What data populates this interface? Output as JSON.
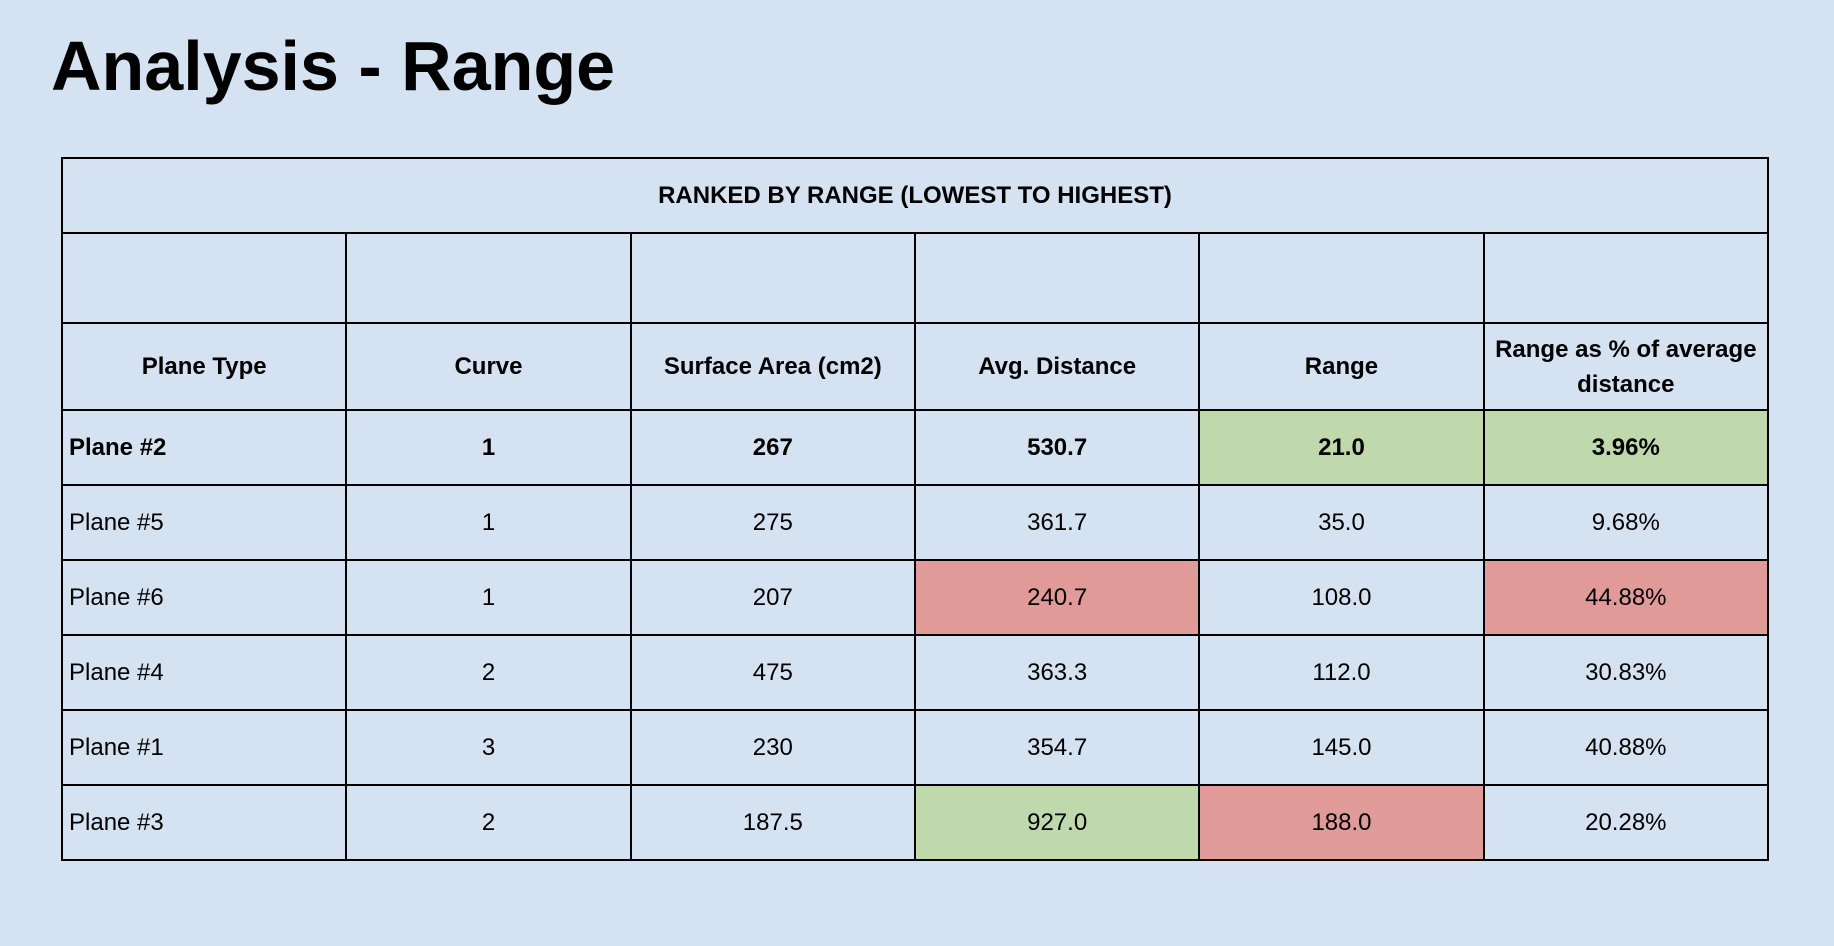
{
  "title": "Analysis - Range",
  "table": {
    "caption": "RANKED BY RANGE (LOWEST TO HIGHEST)",
    "headers": [
      "Plane Type",
      "Curve",
      "Surface Area (cm2)",
      "Avg. Distance",
      "Range",
      "Range as % of average distance"
    ],
    "rows": [
      {
        "cells": [
          "Plane #2",
          "1",
          "267",
          "530.7",
          "21.0",
          "3.96%"
        ],
        "bold": true,
        "fills": [
          null,
          null,
          null,
          null,
          "#bfd8ac",
          "#bfd8ac"
        ]
      },
      {
        "cells": [
          "Plane #5",
          "1",
          "275",
          "361.7",
          "35.0",
          "9.68%"
        ],
        "bold": false,
        "fills": [
          null,
          null,
          null,
          null,
          null,
          null
        ]
      },
      {
        "cells": [
          "Plane #6",
          "1",
          "207",
          "240.7",
          "108.0",
          "44.88%"
        ],
        "bold": false,
        "fills": [
          null,
          null,
          null,
          "#e09b98",
          null,
          "#e09b98"
        ]
      },
      {
        "cells": [
          "Plane #4",
          "2",
          "475",
          "363.3",
          "112.0",
          "30.83%"
        ],
        "bold": false,
        "fills": [
          null,
          null,
          null,
          null,
          null,
          null
        ]
      },
      {
        "cells": [
          "Plane #1",
          "3",
          "230",
          "354.7",
          "145.0",
          "40.88%"
        ],
        "bold": false,
        "fills": [
          null,
          null,
          null,
          null,
          null,
          null
        ]
      },
      {
        "cells": [
          "Plane #3",
          "2",
          "187.5",
          "927.0",
          "188.0",
          "20.28%"
        ],
        "bold": false,
        "fills": [
          null,
          null,
          null,
          "#bfd8ac",
          "#e09b98",
          null
        ]
      }
    ]
  }
}
